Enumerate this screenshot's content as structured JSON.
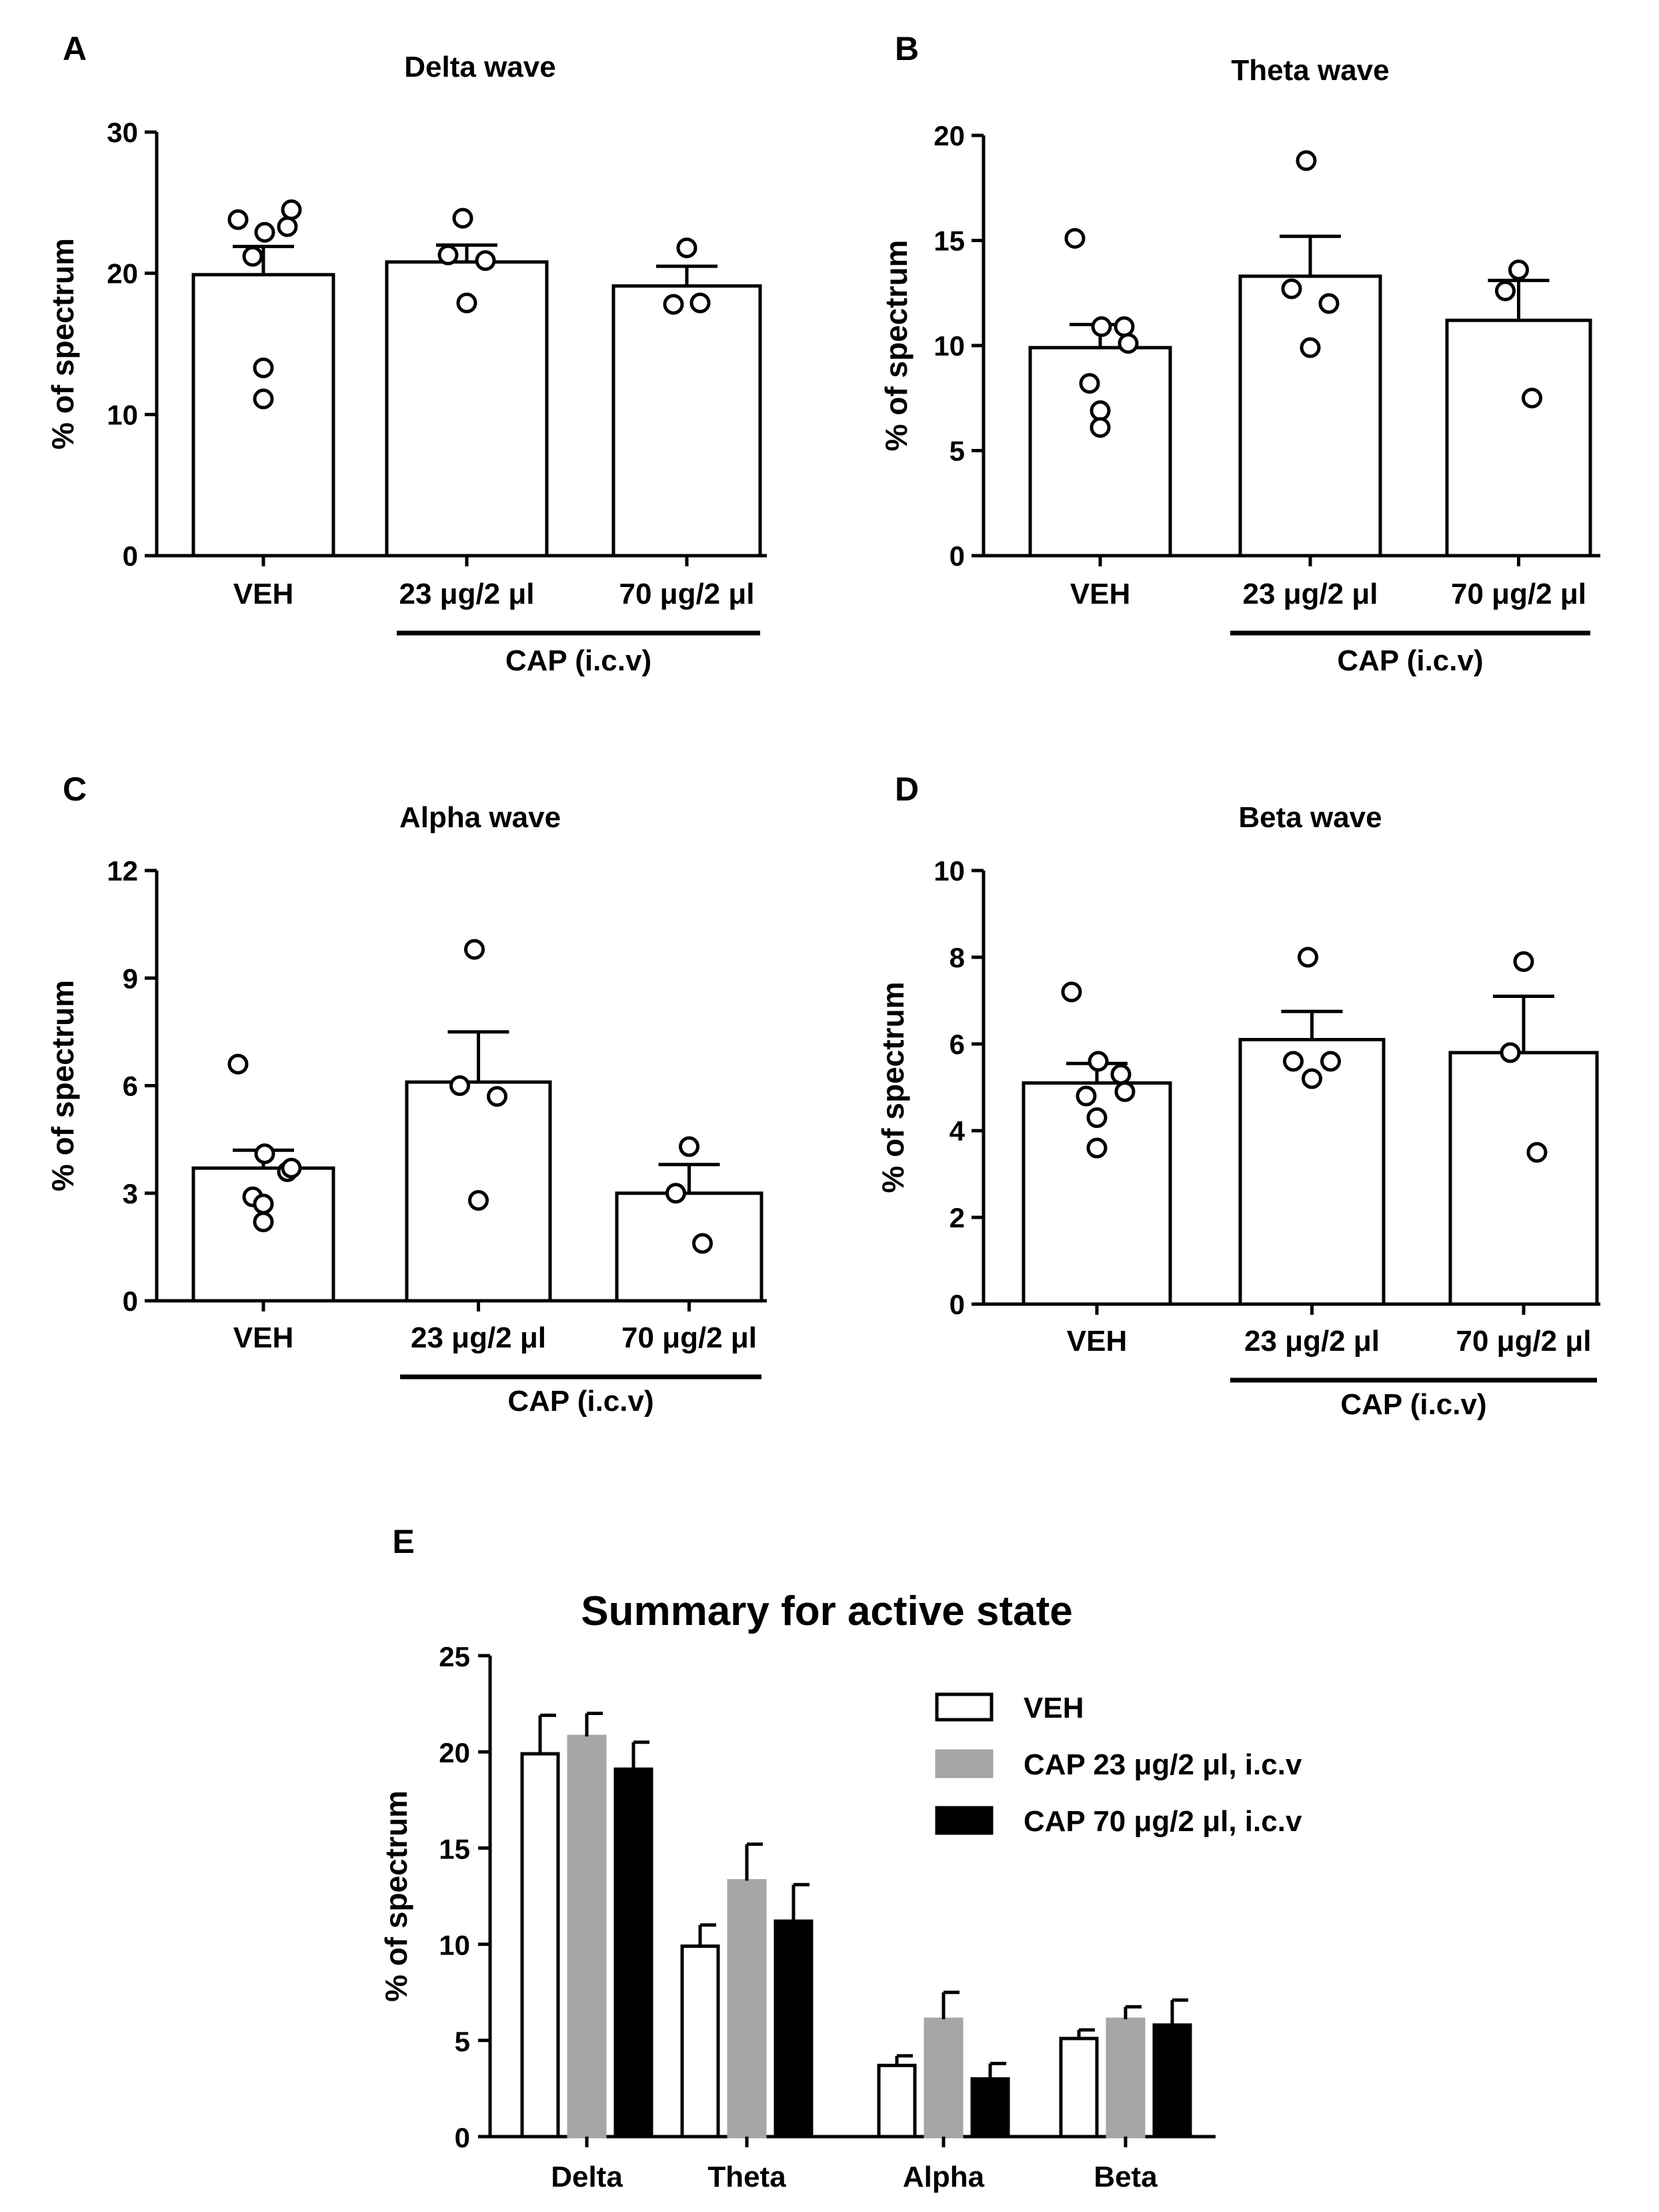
{
  "colors": {
    "veh": "#ffffff",
    "cap23": "#a6a6a8",
    "cap70": "#000000",
    "ink": "#000000"
  },
  "chart_data": [
    {
      "panel": "A",
      "type": "bar",
      "title": "Delta wave",
      "ylabel": "% of spectrum",
      "ylim": [
        0,
        30
      ],
      "yticks": [
        "0",
        "10",
        "20",
        "30"
      ],
      "ytick_values": [
        0,
        10,
        20,
        30
      ],
      "categories": [
        "VEH",
        "23 μg/2 μl",
        "70 μg/2 μl"
      ],
      "group_label": "CAP (i.c.v)",
      "values": [
        19.9,
        20.8,
        19.1
      ],
      "errors": [
        2.0,
        1.2,
        1.4
      ],
      "points": [
        [
          23.8,
          22.9,
          23.3,
          24.5,
          21.2,
          13.3,
          11.1
        ],
        [
          23.9,
          21.3,
          20.9,
          17.9
        ],
        [
          21.8,
          17.8,
          17.9
        ]
      ]
    },
    {
      "panel": "B",
      "type": "bar",
      "title": "Theta wave",
      "ylabel": "% of spectrum",
      "ylim": [
        0,
        20
      ],
      "yticks": [
        "0",
        "5",
        "10",
        "15",
        "20"
      ],
      "ytick_values": [
        0,
        5,
        10,
        15,
        20
      ],
      "categories": [
        "VEH",
        "23 μg/2 μl",
        "70 μg/2 μl"
      ],
      "group_label": "CAP (i.c.v)",
      "values": [
        9.9,
        13.3,
        11.2
      ],
      "errors": [
        1.1,
        1.9,
        1.9
      ],
      "points": [
        [
          15.1,
          10.9,
          10.9,
          10.1,
          8.2,
          6.9,
          6.1
        ],
        [
          18.8,
          12.7,
          12.0,
          9.9
        ],
        [
          13.6,
          12.6,
          7.5
        ]
      ]
    },
    {
      "panel": "C",
      "type": "bar",
      "title": "Alpha wave",
      "ylabel": "% of spectrum",
      "ylim": [
        0,
        12
      ],
      "yticks": [
        "0",
        "3",
        "6",
        "9",
        "12"
      ],
      "ytick_values": [
        0,
        3,
        6,
        9,
        12
      ],
      "categories": [
        "VEH",
        "23 μg/2 μl",
        "70 μg/2 μl"
      ],
      "group_label": "CAP (i.c.v)",
      "values": [
        3.7,
        6.1,
        3.0
      ],
      "errors": [
        0.5,
        1.4,
        0.8
      ],
      "points": [
        [
          6.6,
          4.1,
          3.6,
          3.7,
          2.9,
          2.7,
          2.2
        ],
        [
          9.8,
          6.0,
          5.7,
          2.8
        ],
        [
          4.3,
          3.0,
          1.6
        ]
      ]
    },
    {
      "panel": "D",
      "type": "bar",
      "title": "Beta wave",
      "ylabel": "% of spectrum",
      "ylim": [
        0,
        10
      ],
      "yticks": [
        "0",
        "2",
        "4",
        "6",
        "8",
        "10"
      ],
      "ytick_values": [
        0,
        2,
        4,
        6,
        8,
        10
      ],
      "categories": [
        "VEH",
        "23 μg/2 μl",
        "70 μg/2 μl"
      ],
      "group_label": "CAP (i.c.v)",
      "values": [
        5.1,
        6.1,
        5.8
      ],
      "errors": [
        0.45,
        0.65,
        1.3
      ],
      "points": [
        [
          7.2,
          5.6,
          5.3,
          4.9,
          4.8,
          4.3,
          3.6
        ],
        [
          8.0,
          5.6,
          5.6,
          5.2
        ],
        [
          7.9,
          5.8,
          3.5
        ]
      ]
    },
    {
      "panel": "E",
      "type": "bar",
      "title": "Summary for active state",
      "ylabel": "% of spectrum",
      "ylim": [
        0,
        25
      ],
      "yticks": [
        "0",
        "5",
        "10",
        "15",
        "20",
        "25"
      ],
      "ytick_values": [
        0,
        5,
        10,
        15,
        20,
        25
      ],
      "categories": [
        "Delta",
        "Theta",
        "Alpha",
        "Beta"
      ],
      "series": [
        {
          "name": "VEH",
          "values": [
            19.9,
            9.9,
            3.7,
            5.1
          ],
          "errors": [
            2.0,
            1.1,
            0.5,
            0.45
          ]
        },
        {
          "name": "CAP 23 μg/2 μl, i.c.v",
          "values": [
            20.8,
            13.3,
            6.1,
            6.1
          ],
          "errors": [
            1.2,
            1.9,
            1.4,
            0.65
          ]
        },
        {
          "name": "CAP 70 μg/2 μl, i.c.v",
          "values": [
            19.1,
            11.2,
            3.0,
            5.8
          ],
          "errors": [
            1.4,
            1.9,
            0.8,
            1.3
          ]
        }
      ],
      "legend": "top-right"
    }
  ]
}
